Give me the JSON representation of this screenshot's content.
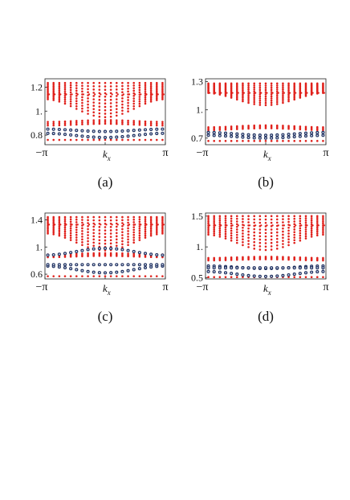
{
  "figure": {
    "x_tick_left": "−π",
    "x_tick_right": "π",
    "x_label": "k",
    "x_label_sub": "x"
  },
  "chart_data": [
    {
      "id": "a",
      "caption": "(a)",
      "type": "scatter",
      "xlim": [
        -3.1416,
        3.1416
      ],
      "ylim": [
        0.72,
        1.27
      ],
      "ytick_labels": [
        "0.8",
        "1.",
        "1.2"
      ],
      "yticks": [
        0.8,
        1.0,
        1.2
      ],
      "grid": false,
      "series": [
        {
          "color": "#e0201b",
          "bands": [
            {
              "kind": "flat",
              "y": 0.76,
              "lines": 1
            },
            {
              "kind": "arc",
              "center": 0.895,
              "amp": 0.015,
              "width": 0.03,
              "lines": 3
            },
            {
              "kind": "upper",
              "top": 1.235,
              "lower_edge": 1.1,
              "lower_edge_center": 0.95,
              "secondary": 1.14
            }
          ]
        },
        {
          "color": "#1c2d5c",
          "bands": [
            {
              "kind": "arc",
              "center": 0.815,
              "amp": -0.035,
              "width": 0.01,
              "lines": 1
            },
            {
              "kind": "arc",
              "center": 0.85,
              "amp": -0.02,
              "width": 0.01,
              "lines": 1
            }
          ]
        }
      ]
    },
    {
      "id": "b",
      "caption": "(b)",
      "type": "scatter",
      "xlim": [
        -3.1416,
        3.1416
      ],
      "ylim": [
        0.63,
        1.33
      ],
      "ytick_labels": [
        "0.7",
        "1.",
        "1.3"
      ],
      "yticks": [
        0.7,
        1.0,
        1.3
      ],
      "grid": false,
      "series": [
        {
          "color": "#e0201b",
          "bands": [
            {
              "kind": "flat",
              "y": 0.67,
              "lines": 1
            },
            {
              "kind": "arc",
              "center": 0.8,
              "amp": 0.02,
              "width": 0.03,
              "lines": 3
            },
            {
              "kind": "upper",
              "top": 1.28,
              "lower_edge": 1.18,
              "lower_edge_center": 1.05,
              "secondary": 1.18
            }
          ]
        },
        {
          "color": "#1c2d5c",
          "bands": [
            {
              "kind": "arc",
              "center": 0.73,
              "amp": -0.03,
              "width": 0.01,
              "lines": 1
            },
            {
              "kind": "arc",
              "center": 0.76,
              "amp": -0.03,
              "width": 0.01,
              "lines": 1
            }
          ]
        }
      ]
    },
    {
      "id": "c",
      "caption": "(c)",
      "type": "scatter",
      "xlim": [
        -3.1416,
        3.1416
      ],
      "ylim": [
        0.53,
        1.5
      ],
      "ytick_labels": [
        "0.6",
        "1.",
        "1.4"
      ],
      "yticks": [
        0.6,
        1.0,
        1.4
      ],
      "grid": false,
      "series": [
        {
          "color": "#e0201b",
          "bands": [
            {
              "kind": "flat",
              "y": 0.57,
              "lines": 1
            },
            {
              "kind": "arc",
              "center": 0.87,
              "amp": 0.02,
              "width": 0.04,
              "lines": 3
            },
            {
              "kind": "upper",
              "top": 1.44,
              "lower_edge": 1.2,
              "lower_edge_center": 0.95,
              "secondary": 1.33
            }
          ]
        },
        {
          "color": "#1c2d5c",
          "bands": [
            {
              "kind": "arc",
              "center": 0.72,
              "amp": -0.1,
              "width": 0.01,
              "lines": 1
            },
            {
              "kind": "arc",
              "center": 0.88,
              "amp": 0.1,
              "width": 0.01,
              "lines": 1
            },
            {
              "kind": "arc",
              "center": 0.74,
              "amp": 0.0,
              "width": 0.01,
              "lines": 1
            }
          ]
        }
      ]
    },
    {
      "id": "d",
      "caption": "(d)",
      "type": "scatter",
      "xlim": [
        -3.1416,
        3.1416
      ],
      "ylim": [
        0.48,
        1.55
      ],
      "ytick_labels": [
        "0.5",
        "1.",
        "1.5"
      ],
      "yticks": [
        0.5,
        1.0,
        1.5
      ],
      "grid": false,
      "series": [
        {
          "color": "#e0201b",
          "bands": [
            {
              "kind": "flat",
              "y": 0.51,
              "lines": 1
            },
            {
              "kind": "arc",
              "center": 0.8,
              "amp": 0.02,
              "width": 0.04,
              "lines": 3
            },
            {
              "kind": "upper",
              "top": 1.5,
              "lower_edge": 1.2,
              "lower_edge_center": 0.95,
              "secondary": 1.35
            }
          ]
        },
        {
          "color": "#1c2d5c",
          "bands": [
            {
              "kind": "arc",
              "center": 0.6,
              "amp": -0.08,
              "width": 0.01,
              "lines": 1
            },
            {
              "kind": "arc",
              "center": 0.69,
              "amp": -0.04,
              "width": 0.01,
              "lines": 1
            },
            {
              "kind": "arc",
              "center": 0.66,
              "amp": 0.0,
              "width": 0.01,
              "lines": 1
            }
          ]
        }
      ]
    }
  ]
}
